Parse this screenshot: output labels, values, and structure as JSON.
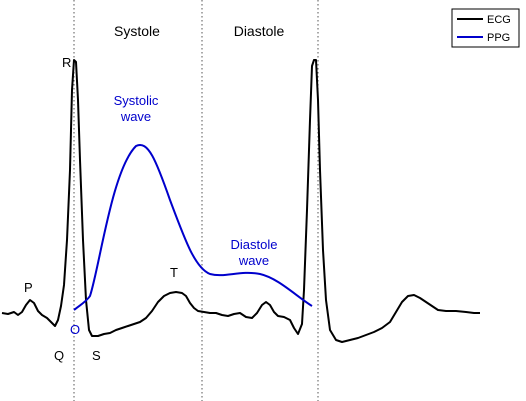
{
  "labels": {
    "phase_systole": "Systole",
    "phase_diastole": "Diastole",
    "ecg_p": "P",
    "ecg_q": "Q",
    "ecg_r": "R",
    "ecg_s": "S",
    "ecg_t": "T",
    "ppg_onset": "O",
    "systolic_wave_line1": "Systolic",
    "systolic_wave_line2": "wave",
    "diastole_wave_line1": "Diastole",
    "diastole_wave_line2": "wave"
  },
  "legend": {
    "entries": [
      {
        "label": "ECG",
        "color": "#000000"
      },
      {
        "label": "PPG",
        "color": "#0000cc"
      }
    ],
    "placement": "top-right"
  },
  "colors": {
    "ecg": "#000000",
    "ppg": "#0000cc",
    "divider": "#555555",
    "text": "#000000",
    "ppg_text": "#0000cc"
  }
}
